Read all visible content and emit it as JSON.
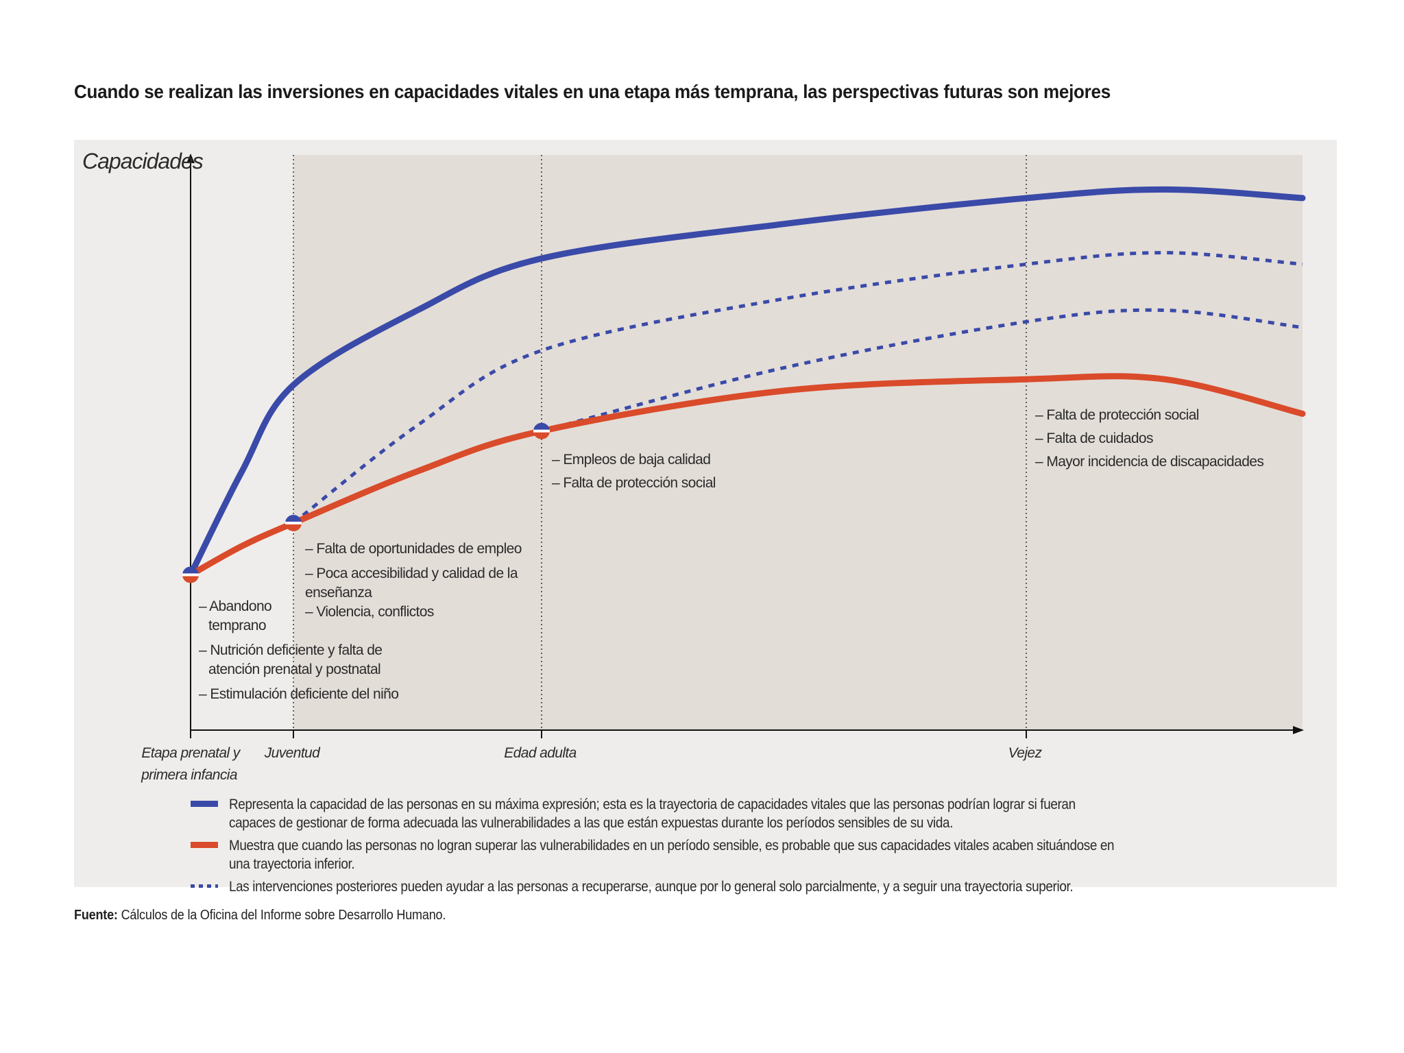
{
  "title": "Cuando se realizan las inversiones en capacidades vitales en una etapa más temprana, las perspectivas futuras son mejores",
  "colors": {
    "optimal": "#3a4aa8",
    "inferior": "#d94b2a",
    "shade": "#e3ddd8",
    "panel": "#efedeb"
  },
  "chart_data": {
    "type": "line",
    "y_axis_title": "Capacidades",
    "stages": [
      {
        "label_line1": "Etapa prenatal y",
        "label_line2": "primera infancia"
      },
      {
        "label_line1": "Juventud",
        "label_line2": ""
      },
      {
        "label_line1": "Edad adulta",
        "label_line2": ""
      },
      {
        "label_line1": "Vejez",
        "label_line2": ""
      }
    ],
    "series": [
      {
        "name": "optimal",
        "style": "solid",
        "x": [
          0,
          0.5,
          1,
          1.5,
          2,
          2.5,
          3,
          3.6,
          4.2
        ],
        "values": [
          0.27,
          0.45,
          0.6,
          0.73,
          0.82,
          0.88,
          0.925,
          0.94,
          0.925
        ]
      },
      {
        "name": "recovery-high",
        "style": "dashed",
        "x": [
          1,
          1.5,
          2,
          2.5,
          3,
          3.6,
          4.2
        ],
        "values": [
          0.36,
          0.53,
          0.66,
          0.75,
          0.81,
          0.83,
          0.81
        ]
      },
      {
        "name": "recovery-low",
        "style": "dashed",
        "x": [
          2,
          2.5,
          3,
          3.6,
          4.2
        ],
        "values": [
          0.52,
          0.63,
          0.71,
          0.73,
          0.7
        ]
      },
      {
        "name": "inferior",
        "style": "solid",
        "x": [
          0,
          0.5,
          1,
          1.5,
          2,
          2.5,
          3,
          3.6,
          4.2
        ],
        "values": [
          0.27,
          0.32,
          0.36,
          0.45,
          0.52,
          0.59,
          0.61,
          0.61,
          0.55
        ]
      }
    ],
    "critical_points": [
      {
        "x": 0,
        "y": 0.27
      },
      {
        "x": 1,
        "y": 0.36
      },
      {
        "x": 2,
        "y": 0.52
      }
    ],
    "annotations": [
      {
        "stage": 0,
        "lines": [
          "– Abandono",
          "  temprano",
          "– Nutrición deficiente y falta de",
          "  atención prenatal y postnatal",
          "– Estimulación deficiente del niño"
        ]
      },
      {
        "stage": 1,
        "lines": [
          "– Falta de oportunidades de empleo",
          "– Poca accesibilidad y calidad de la",
          "enseñanza",
          "– Violencia, conflictos"
        ]
      },
      {
        "stage": 2,
        "lines": [
          "– Empleos de baja calidad",
          "– Falta de protección social"
        ]
      },
      {
        "stage": 3,
        "lines": [
          "– Falta de protección social",
          "– Falta de cuidados",
          "– Mayor incidencia de discapacidades"
        ]
      }
    ]
  },
  "legend": [
    {
      "kind": "solid-blue",
      "text": "Representa la capacidad de las personas en su máxima expresión; esta es la trayectoria de capacidades vitales que las personas podrían lograr si fueran capaces de gestionar de forma adecuada las vulnerabilidades a las que están expuestas durante los períodos sensibles de su vida."
    },
    {
      "kind": "solid-red",
      "text": "Muestra que cuando las personas no logran superar las vulnerabilidades en un período sensible, es probable que sus capacidades vitales acaben situándose en una trayectoria inferior."
    },
    {
      "kind": "dashed-blue",
      "text": "Las intervenciones posteriores pueden ayudar a las personas a recuperarse, aunque por lo general solo parcialmente, y a seguir una trayectoria superior."
    }
  ],
  "source": {
    "label": "Fuente:",
    "text": "Cálculos de la Oficina del Informe sobre Desarrollo Humano."
  }
}
